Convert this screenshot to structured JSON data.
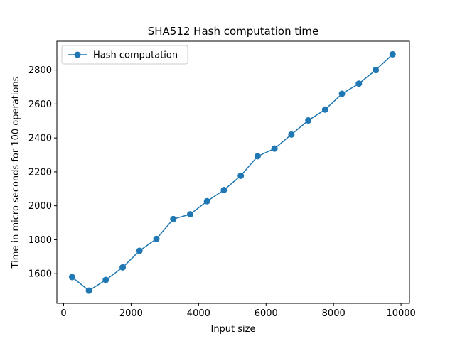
{
  "chart_data": {
    "type": "line",
    "title": "SHA512 Hash computation time",
    "xlabel": "Input size",
    "ylabel": "Time in micro seconds for 100 operations",
    "xlim": [
      -200,
      10250
    ],
    "ylim": [
      1425,
      2970
    ],
    "xticks": [
      0,
      2000,
      4000,
      6000,
      8000,
      10000
    ],
    "yticks": [
      1600,
      1800,
      2000,
      2200,
      2400,
      2600,
      2800
    ],
    "grid": false,
    "legend_position": "top-left",
    "series": [
      {
        "name": "Hash computation",
        "color": "#1f77b4",
        "marker": "circle",
        "x": [
          250,
          750,
          1250,
          1750,
          2250,
          2750,
          3250,
          3750,
          4250,
          4750,
          5250,
          5750,
          6250,
          6750,
          7250,
          7750,
          8250,
          8750,
          9250,
          9750
        ],
        "y": [
          1580,
          1500,
          1563,
          1637,
          1735,
          1805,
          1922,
          1950,
          2027,
          2093,
          2177,
          2292,
          2337,
          2420,
          2503,
          2567,
          2660,
          2720,
          2800,
          2893
        ]
      }
    ]
  }
}
